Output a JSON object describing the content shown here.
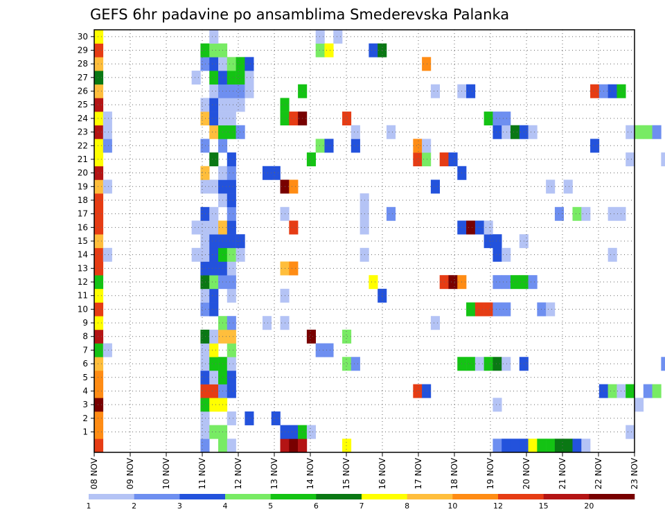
{
  "chart_data": {
    "type": "heatmap",
    "title": "GEFS 6hr padavine po ansamblima Smederevska Palanka",
    "xlabel": "",
    "ylabel": "",
    "y_ticks": [
      "1",
      "2",
      "3",
      "4",
      "5",
      "6",
      "7",
      "8",
      "9",
      "10",
      "11",
      "12",
      "13",
      "14",
      "15",
      "16",
      "17",
      "18",
      "19",
      "20",
      "21",
      "22",
      "23",
      "24",
      "25",
      "26",
      "27",
      "28",
      "29",
      "30"
    ],
    "x_ticks": [
      "08 NOV",
      "09 NOV",
      "10 NOV",
      "11 NOV",
      "12 NOV",
      "13 NOV",
      "14 NOV",
      "15 NOV",
      "16 NOV",
      "17 NOV",
      "18 NOV",
      "19 NOV",
      "20 NOV",
      "21 NOV",
      "22 NOV",
      "23 NOV"
    ],
    "x_range_days": [
      0,
      15
    ],
    "y_range": [
      0,
      30
    ],
    "grid": true,
    "colorbar": {
      "placement": "bottom",
      "labels": [
        "1",
        "2",
        "3",
        "4",
        "5",
        "6",
        "7",
        "8",
        "10",
        "12",
        "15",
        "20"
      ],
      "colors": [
        "#b4c3f5",
        "#6e8ff0",
        "#2352dc",
        "#78eb64",
        "#14c314",
        "#0a7814",
        "#ffff00",
        "#ffbe3c",
        "#ff8c14",
        "#e63c14",
        "#b41414",
        "#780000"
      ]
    },
    "cells": [
      [
        0,
        0,
        9
      ],
      [
        0,
        1,
        8
      ],
      [
        0,
        2,
        8
      ],
      [
        0,
        3,
        11
      ],
      [
        0,
        4,
        8
      ],
      [
        0,
        5,
        8
      ],
      [
        0,
        6,
        7
      ],
      [
        0,
        7,
        4
      ],
      [
        0,
        8,
        10
      ],
      [
        0,
        9,
        6
      ],
      [
        0,
        10,
        9
      ],
      [
        0,
        11,
        6
      ],
      [
        0,
        12,
        4
      ],
      [
        0,
        13,
        9
      ],
      [
        0,
        14,
        9
      ],
      [
        0,
        15,
        7
      ],
      [
        0,
        16,
        9
      ],
      [
        0,
        17,
        9
      ],
      [
        0,
        18,
        9
      ],
      [
        0,
        19,
        7
      ],
      [
        0,
        20,
        10
      ],
      [
        0,
        21,
        6
      ],
      [
        0,
        22,
        6
      ],
      [
        0,
        23,
        10
      ],
      [
        0,
        24,
        6
      ],
      [
        0,
        25,
        10
      ],
      [
        0,
        26,
        7
      ],
      [
        0,
        27,
        5
      ],
      [
        0,
        28,
        7
      ],
      [
        0,
        29,
        9
      ],
      [
        0,
        30,
        6
      ],
      [
        1,
        7,
        0
      ],
      [
        1,
        14,
        0
      ],
      [
        1,
        19,
        0
      ],
      [
        1,
        22,
        1
      ],
      [
        1,
        23,
        0
      ],
      [
        1,
        24,
        0
      ],
      [
        11,
        14,
        0
      ],
      [
        11,
        16,
        0
      ],
      [
        11,
        27,
        0
      ],
      [
        12,
        0,
        1
      ],
      [
        12,
        1,
        0
      ],
      [
        12,
        2,
        0
      ],
      [
        12,
        3,
        4
      ],
      [
        12,
        4,
        9
      ],
      [
        12,
        5,
        2
      ],
      [
        12,
        6,
        0
      ],
      [
        12,
        7,
        0
      ],
      [
        12,
        8,
        5
      ],
      [
        12,
        10,
        1
      ],
      [
        12,
        11,
        0
      ],
      [
        12,
        12,
        5
      ],
      [
        12,
        13,
        2
      ],
      [
        12,
        14,
        0
      ],
      [
        12,
        15,
        0
      ],
      [
        12,
        16,
        0
      ],
      [
        12,
        17,
        2
      ],
      [
        12,
        19,
        0
      ],
      [
        12,
        20,
        7
      ],
      [
        12,
        22,
        1
      ],
      [
        12,
        24,
        7
      ],
      [
        12,
        25,
        0
      ],
      [
        12,
        28,
        1
      ],
      [
        12,
        29,
        4
      ],
      [
        13,
        1,
        3
      ],
      [
        13,
        3,
        6
      ],
      [
        13,
        4,
        9
      ],
      [
        13,
        5,
        0
      ],
      [
        13,
        6,
        4
      ],
      [
        13,
        7,
        6
      ],
      [
        13,
        8,
        0
      ],
      [
        13,
        10,
        2
      ],
      [
        13,
        11,
        2
      ],
      [
        13,
        12,
        3
      ],
      [
        13,
        13,
        2
      ],
      [
        13,
        14,
        2
      ],
      [
        13,
        15,
        2
      ],
      [
        13,
        16,
        0
      ],
      [
        13,
        17,
        0
      ],
      [
        13,
        19,
        0
      ],
      [
        13,
        21,
        5
      ],
      [
        13,
        23,
        7
      ],
      [
        13,
        24,
        2
      ],
      [
        13,
        25,
        2
      ],
      [
        13,
        26,
        0
      ],
      [
        13,
        27,
        4
      ],
      [
        13,
        28,
        2
      ],
      [
        13,
        29,
        3
      ],
      [
        13,
        30,
        0
      ],
      [
        14,
        0,
        3
      ],
      [
        14,
        1,
        3
      ],
      [
        14,
        3,
        6
      ],
      [
        14,
        4,
        1
      ],
      [
        14,
        5,
        4
      ],
      [
        14,
        6,
        4
      ],
      [
        14,
        8,
        7
      ],
      [
        14,
        9,
        3
      ],
      [
        14,
        12,
        1
      ],
      [
        14,
        13,
        2
      ],
      [
        14,
        14,
        4
      ],
      [
        14,
        15,
        2
      ],
      [
        14,
        16,
        7
      ],
      [
        14,
        18,
        0
      ],
      [
        14,
        19,
        2
      ],
      [
        14,
        20,
        0
      ],
      [
        14,
        22,
        1
      ],
      [
        14,
        23,
        4
      ],
      [
        14,
        24,
        0
      ],
      [
        14,
        25,
        0
      ],
      [
        14,
        26,
        1
      ],
      [
        14,
        27,
        2
      ],
      [
        14,
        28,
        0
      ],
      [
        14,
        29,
        3
      ],
      [
        15,
        0,
        0
      ],
      [
        15,
        2,
        0
      ],
      [
        15,
        4,
        2
      ],
      [
        15,
        5,
        2
      ],
      [
        15,
        6,
        0
      ],
      [
        15,
        7,
        3
      ],
      [
        15,
        8,
        7
      ],
      [
        15,
        9,
        1
      ],
      [
        15,
        11,
        0
      ],
      [
        15,
        12,
        1
      ],
      [
        15,
        13,
        0
      ],
      [
        15,
        14,
        3
      ],
      [
        15,
        15,
        2
      ],
      [
        15,
        16,
        2
      ],
      [
        15,
        17,
        1
      ],
      [
        15,
        18,
        2
      ],
      [
        15,
        19,
        2
      ],
      [
        15,
        20,
        1
      ],
      [
        15,
        21,
        2
      ],
      [
        15,
        23,
        4
      ],
      [
        15,
        24,
        0
      ],
      [
        15,
        25,
        0
      ],
      [
        15,
        26,
        1
      ],
      [
        15,
        27,
        4
      ],
      [
        15,
        28,
        3
      ],
      [
        16,
        14,
        0
      ],
      [
        16,
        15,
        2
      ],
      [
        16,
        23,
        1
      ],
      [
        16,
        25,
        0
      ],
      [
        16,
        26,
        1
      ],
      [
        16,
        27,
        4
      ],
      [
        16,
        28,
        4
      ],
      [
        17,
        2,
        2
      ],
      [
        17,
        26,
        0
      ],
      [
        17,
        27,
        0
      ],
      [
        17,
        28,
        2
      ],
      [
        19,
        9,
        0
      ],
      [
        19,
        20,
        2
      ],
      [
        20,
        2,
        2
      ],
      [
        20,
        20,
        2
      ],
      [
        21,
        0,
        10
      ],
      [
        21,
        1,
        2
      ],
      [
        21,
        9,
        0
      ],
      [
        21,
        11,
        0
      ],
      [
        21,
        13,
        7
      ],
      [
        21,
        17,
        0
      ],
      [
        21,
        19,
        11
      ],
      [
        21,
        24,
        4
      ],
      [
        21,
        25,
        4
      ],
      [
        22,
        0,
        11
      ],
      [
        22,
        1,
        2
      ],
      [
        22,
        13,
        8
      ],
      [
        22,
        16,
        9
      ],
      [
        22,
        19,
        8
      ],
      [
        22,
        24,
        9
      ],
      [
        23,
        0,
        10
      ],
      [
        23,
        1,
        4
      ],
      [
        23,
        24,
        11
      ],
      [
        23,
        26,
        4
      ],
      [
        24,
        1,
        0
      ],
      [
        24,
        8,
        11
      ],
      [
        24,
        21,
        4
      ],
      [
        25,
        7,
        1
      ],
      [
        25,
        22,
        3
      ],
      [
        25,
        29,
        3
      ],
      [
        25,
        30,
        0
      ],
      [
        26,
        7,
        1
      ],
      [
        26,
        22,
        2
      ],
      [
        26,
        29,
        6
      ],
      [
        27,
        30,
        0
      ],
      [
        28,
        0,
        6
      ],
      [
        28,
        6,
        3
      ],
      [
        28,
        8,
        3
      ],
      [
        28,
        24,
        9
      ],
      [
        29,
        6,
        1
      ],
      [
        29,
        22,
        2
      ],
      [
        29,
        23,
        0
      ],
      [
        30,
        14,
        0
      ],
      [
        30,
        16,
        0
      ],
      [
        30,
        17,
        0
      ],
      [
        30,
        18,
        0
      ],
      [
        31,
        12,
        6
      ],
      [
        31,
        29,
        2
      ],
      [
        32,
        11,
        2
      ],
      [
        32,
        29,
        5
      ],
      [
        33,
        17,
        1
      ],
      [
        33,
        23,
        0
      ],
      [
        36,
        4,
        9
      ],
      [
        36,
        21,
        9
      ],
      [
        36,
        22,
        8
      ],
      [
        37,
        4,
        2
      ],
      [
        37,
        21,
        3
      ],
      [
        37,
        22,
        0
      ],
      [
        37,
        28,
        8
      ],
      [
        38,
        9,
        0
      ],
      [
        38,
        19,
        2
      ],
      [
        38,
        26,
        0
      ],
      [
        39,
        12,
        9
      ],
      [
        39,
        21,
        9
      ],
      [
        40,
        12,
        11
      ],
      [
        40,
        21,
        2
      ],
      [
        41,
        12,
        8
      ],
      [
        41,
        6,
        4
      ],
      [
        41,
        16,
        2
      ],
      [
        41,
        20,
        2
      ],
      [
        41,
        26,
        0
      ],
      [
        42,
        6,
        4
      ],
      [
        42,
        10,
        4
      ],
      [
        42,
        16,
        11
      ],
      [
        42,
        26,
        2
      ],
      [
        43,
        6,
        0
      ],
      [
        43,
        10,
        9
      ],
      [
        43,
        16,
        2
      ],
      [
        44,
        6,
        4
      ],
      [
        44,
        10,
        9
      ],
      [
        44,
        15,
        2
      ],
      [
        44,
        16,
        0
      ],
      [
        44,
        24,
        4
      ],
      [
        45,
        0,
        1
      ],
      [
        45,
        3,
        0
      ],
      [
        45,
        6,
        5
      ],
      [
        45,
        10,
        1
      ],
      [
        45,
        12,
        1
      ],
      [
        45,
        14,
        2
      ],
      [
        45,
        15,
        2
      ],
      [
        45,
        23,
        2
      ],
      [
        45,
        24,
        1
      ],
      [
        46,
        0,
        2
      ],
      [
        46,
        6,
        0
      ],
      [
        46,
        10,
        1
      ],
      [
        46,
        12,
        1
      ],
      [
        46,
        14,
        0
      ],
      [
        46,
        23,
        0
      ],
      [
        46,
        24,
        1
      ],
      [
        47,
        0,
        2
      ],
      [
        47,
        12,
        4
      ],
      [
        47,
        23,
        5
      ],
      [
        48,
        0,
        2
      ],
      [
        48,
        6,
        2
      ],
      [
        48,
        12,
        4
      ],
      [
        48,
        15,
        0
      ],
      [
        48,
        23,
        2
      ],
      [
        49,
        0,
        6
      ],
      [
        49,
        12,
        1
      ],
      [
        49,
        23,
        0
      ],
      [
        50,
        0,
        4
      ],
      [
        50,
        10,
        1
      ],
      [
        51,
        0,
        4
      ],
      [
        51,
        10,
        0
      ],
      [
        51,
        19,
        0
      ],
      [
        52,
        0,
        5
      ],
      [
        52,
        17,
        1
      ],
      [
        53,
        0,
        5
      ],
      [
        53,
        19,
        0
      ],
      [
        54,
        0,
        2
      ],
      [
        54,
        17,
        3
      ],
      [
        55,
        0,
        0
      ],
      [
        55,
        17,
        0
      ],
      [
        56,
        22,
        2
      ],
      [
        56,
        26,
        9
      ],
      [
        57,
        4,
        2
      ],
      [
        57,
        26,
        1
      ],
      [
        58,
        4,
        3
      ],
      [
        58,
        14,
        0
      ],
      [
        58,
        17,
        0
      ],
      [
        58,
        26,
        2
      ],
      [
        59,
        4,
        0
      ],
      [
        59,
        26,
        4
      ],
      [
        59,
        17,
        0
      ],
      [
        60,
        4,
        4
      ],
      [
        60,
        1,
        0
      ],
      [
        60,
        21,
        0
      ],
      [
        60,
        23,
        0
      ],
      [
        61,
        3,
        0
      ],
      [
        61,
        23,
        3
      ],
      [
        62,
        4,
        1
      ],
      [
        62,
        23,
        3
      ],
      [
        63,
        4,
        3
      ],
      [
        63,
        23,
        1
      ],
      [
        64,
        6,
        1
      ],
      [
        64,
        21,
        0
      ],
      [
        65,
        25,
        4
      ],
      [
        65,
        6,
        4
      ],
      [
        65,
        4,
        4
      ],
      [
        65,
        21,
        3
      ],
      [
        65,
        28,
        3
      ]
    ]
  }
}
